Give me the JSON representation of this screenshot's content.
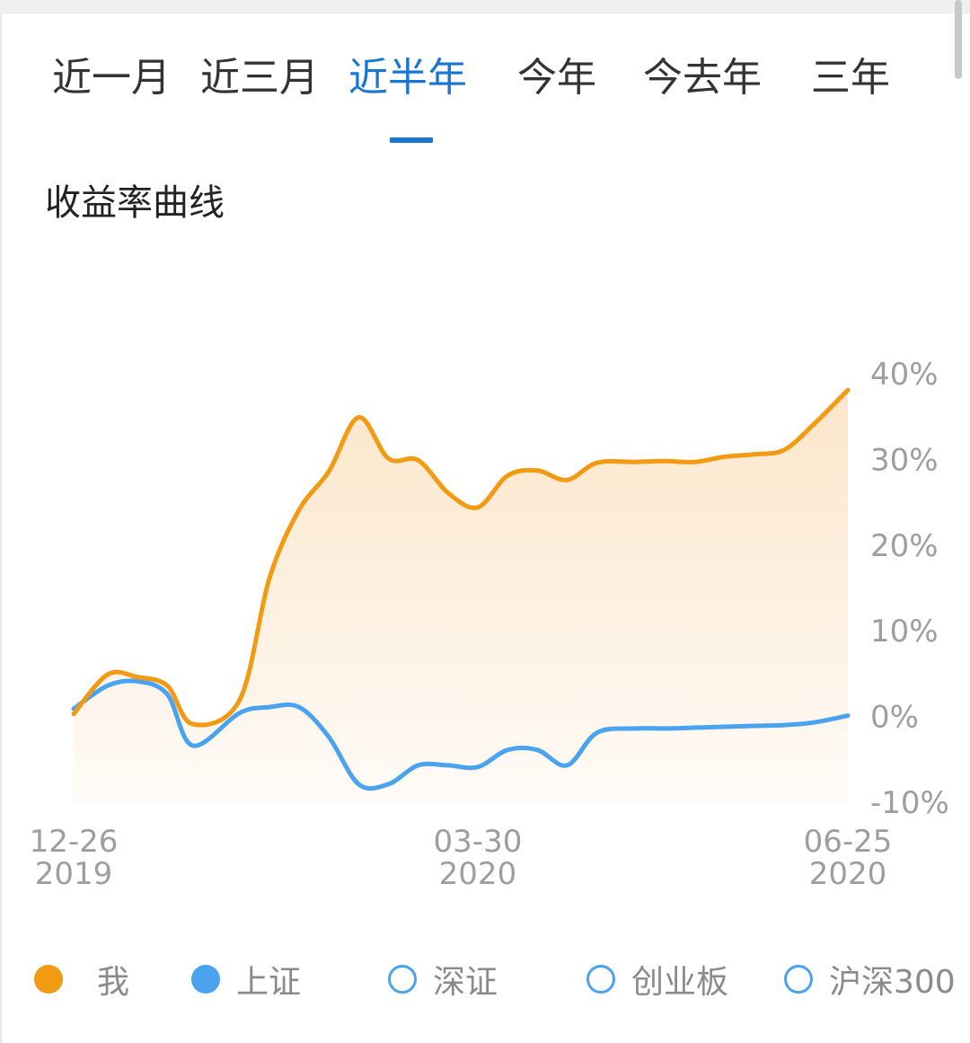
{
  "tabs": [
    {
      "label": "近一月",
      "active": false
    },
    {
      "label": "近三月",
      "active": false
    },
    {
      "label": "近半年",
      "active": true
    },
    {
      "label": "今年",
      "active": false
    },
    {
      "label": "今去年",
      "active": false
    },
    {
      "label": "三年",
      "active": false
    }
  ],
  "section_title": "收益率曲线",
  "colors": {
    "accent": "#1976d2",
    "me_line": "#f29a12",
    "me_fill": "#fbe3c4",
    "sse_line": "#4aa3ef",
    "axis_text": "#9e9e9e"
  },
  "chart_data": {
    "type": "line",
    "title": "",
    "xlabel": "",
    "ylabel": "",
    "ylim": [
      -10,
      40
    ],
    "yticks": [
      40,
      30,
      20,
      10,
      0,
      -10
    ],
    "ytick_labels": [
      "40%",
      "30%",
      "20%",
      "10%",
      "0%",
      "-10%"
    ],
    "y_axis_position": "right",
    "grid": false,
    "xtick_labels": [
      {
        "date": "12-26",
        "year": "2019"
      },
      {
        "date": "03-30",
        "year": "2020"
      },
      {
        "date": "06-25",
        "year": "2020"
      }
    ],
    "x_dates": [
      "2019-12-26",
      "2020-01-03",
      "2020-01-10",
      "2020-01-17",
      "2020-01-23",
      "2020-02-03",
      "2020-02-10",
      "2020-02-17",
      "2020-02-24",
      "2020-03-02",
      "2020-03-09",
      "2020-03-16",
      "2020-03-23",
      "2020-03-30",
      "2020-04-06",
      "2020-04-13",
      "2020-04-20",
      "2020-04-27",
      "2020-05-06",
      "2020-05-13",
      "2020-05-20",
      "2020-05-27",
      "2020-06-03",
      "2020-06-10",
      "2020-06-17",
      "2020-06-25"
    ],
    "series": [
      {
        "name": "我",
        "values": [
          0.2,
          4.8,
          4.5,
          3.5,
          -1.0,
          1.8,
          16,
          24,
          28.5,
          34.8,
          30,
          29.8,
          26,
          24.3,
          28,
          28.6,
          27.5,
          29.5,
          29.6,
          29.7,
          29.6,
          30.2,
          30.5,
          31,
          34,
          38
        ]
      },
      {
        "name": "上证",
        "values": [
          0.8,
          3.5,
          4.0,
          2.5,
          -3.5,
          0.3,
          1.0,
          1.0,
          -2.5,
          -8.0,
          -8.0,
          -5.8,
          -5.8,
          -6.0,
          -4.0,
          -4.0,
          -5.8,
          -2.0,
          -1.5,
          -1.5,
          -1.4,
          -1.3,
          -1.2,
          -1.1,
          -0.8,
          0
        ]
      }
    ]
  },
  "legend": [
    {
      "label": "我",
      "color": "#f29a12",
      "filled": true
    },
    {
      "label": "上证",
      "color": "#4aa3ef",
      "filled": true
    },
    {
      "label": "深证",
      "color": "#4aa3ef",
      "filled": false
    },
    {
      "label": "创业板",
      "color": "#4aa3ef",
      "filled": false
    },
    {
      "label": "沪深300",
      "color": "#4aa3ef",
      "filled": false
    }
  ]
}
